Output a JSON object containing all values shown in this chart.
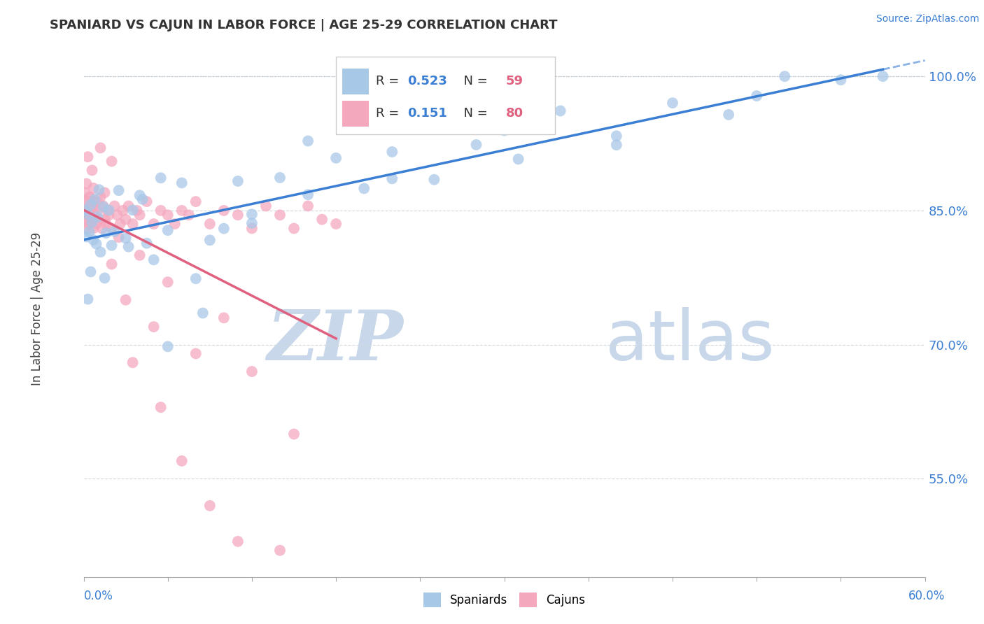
{
  "title": "SPANIARD VS CAJUN IN LABOR FORCE | AGE 25-29 CORRELATION CHART",
  "source_text": "Source: ZipAtlas.com",
  "ylabel": "In Labor Force | Age 25-29",
  "y_tick_positions": [
    55.0,
    70.0,
    85.0,
    100.0
  ],
  "y_tick_labels": [
    "55.0%",
    "70.0%",
    "85.0%",
    "100.0%"
  ],
  "x_range": [
    0.0,
    60.0
  ],
  "y_range": [
    44.0,
    104.0
  ],
  "spaniard_color": "#a8c8e8",
  "cajun_color": "#f4a8be",
  "spaniard_line_color": "#3b7fd4",
  "cajun_line_color": "#e06080",
  "R_spaniard": 0.523,
  "N_spaniard": 59,
  "R_cajun": 0.151,
  "N_cajun": 80,
  "legend_R_color": "#3b7fd4",
  "legend_N_color": "#e06080",
  "watermark_zip": "ZIP",
  "watermark_atlas": "atlas",
  "watermark_color": "#c8d8ea",
  "grid_color": "#d0d8e0",
  "top_dot_line_color": "#c0c8d0"
}
